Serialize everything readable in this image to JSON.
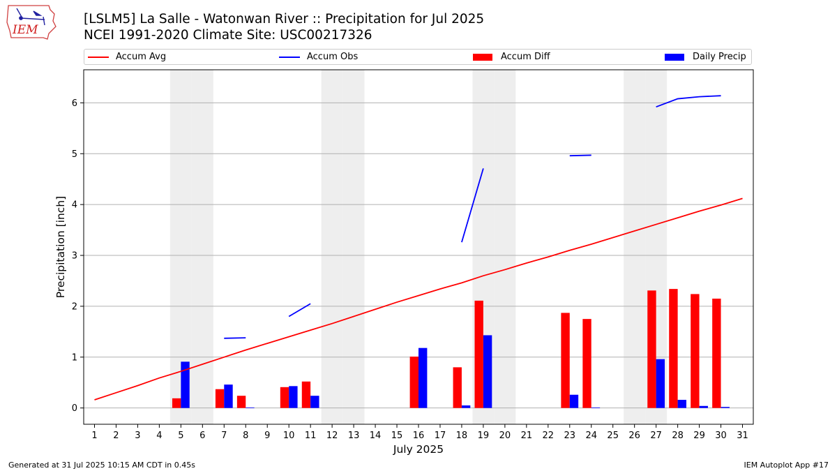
{
  "header": {
    "title_line1": "[LSLM5] La Salle - Watonwan River :: Precipitation for Jul 2025",
    "title_line2": "NCEI 1991-2020 Climate Site: USC00217326",
    "logo_text": "IEM"
  },
  "footer": {
    "generated": "Generated at 31 Jul 2025 10:15 AM CDT in 0.45s",
    "app": "IEM Autoplot App #17"
  },
  "colors": {
    "avg": "#ff0000",
    "obs": "#0000ff",
    "diff": "#ff0000",
    "daily": "#0000ff",
    "weekend": "#eeeeee",
    "grid": "#b0b0b0"
  },
  "chart_data": {
    "type": "bar",
    "ylabel": "Precipitation [inch]",
    "xlabel": "July 2025",
    "ylim": [
      -0.32,
      6.65
    ],
    "xlim": [
      0.5,
      31.5
    ],
    "yticks": [
      0,
      1,
      2,
      3,
      4,
      5,
      6
    ],
    "xticks": [
      1,
      2,
      3,
      4,
      5,
      6,
      7,
      8,
      9,
      10,
      11,
      12,
      13,
      14,
      15,
      16,
      17,
      18,
      19,
      20,
      21,
      22,
      23,
      24,
      25,
      26,
      27,
      28,
      29,
      30,
      31
    ],
    "grid": "horizontal",
    "legend_placement": "top",
    "weekend_days": [
      5,
      6,
      12,
      13,
      19,
      20,
      26,
      27
    ],
    "series": [
      {
        "name": "Accum Avg",
        "kind": "line",
        "x": [
          1,
          2,
          3,
          4,
          5,
          6,
          7,
          8,
          9,
          10,
          11,
          12,
          13,
          14,
          15,
          16,
          17,
          18,
          19,
          20,
          21,
          22,
          23,
          24,
          25,
          26,
          27,
          28,
          29,
          30,
          31
        ],
        "values": [
          0.16,
          0.3,
          0.44,
          0.59,
          0.72,
          0.86,
          1.0,
          1.14,
          1.27,
          1.4,
          1.53,
          1.66,
          1.8,
          1.94,
          2.08,
          2.21,
          2.34,
          2.46,
          2.6,
          2.72,
          2.85,
          2.97,
          3.1,
          3.22,
          3.35,
          3.48,
          3.61,
          3.74,
          3.87,
          3.99,
          4.12
        ]
      },
      {
        "name": "Accum Obs",
        "kind": "line",
        "segments": [
          {
            "x": [
              7,
              8
            ],
            "values": [
              1.37,
              1.38
            ]
          },
          {
            "x": [
              10,
              11
            ],
            "values": [
              1.8,
              2.05
            ]
          },
          {
            "x": [
              18,
              19
            ],
            "values": [
              3.26,
              4.71
            ]
          },
          {
            "x": [
              23,
              24
            ],
            "values": [
              4.96,
              4.97
            ]
          },
          {
            "x": [
              27,
              28,
              29,
              30
            ],
            "values": [
              5.92,
              6.08,
              6.12,
              6.14
            ]
          }
        ]
      },
      {
        "name": "Accum Diff",
        "kind": "bar",
        "x": [
          5,
          7,
          8,
          10,
          11,
          16,
          18,
          19,
          23,
          24,
          27,
          28,
          29,
          30
        ],
        "values": [
          0.19,
          0.37,
          0.24,
          0.41,
          0.52,
          1.01,
          0.8,
          2.11,
          1.87,
          1.75,
          2.31,
          2.34,
          2.24,
          2.15
        ]
      },
      {
        "name": "Daily Precip",
        "kind": "bar",
        "x": [
          5,
          7,
          8,
          10,
          11,
          16,
          18,
          19,
          23,
          24,
          27,
          28,
          29,
          30
        ],
        "values": [
          0.91,
          0.46,
          0.01,
          0.43,
          0.24,
          1.18,
          0.05,
          1.43,
          0.26,
          0.01,
          0.96,
          0.16,
          0.04,
          0.02
        ]
      }
    ]
  }
}
